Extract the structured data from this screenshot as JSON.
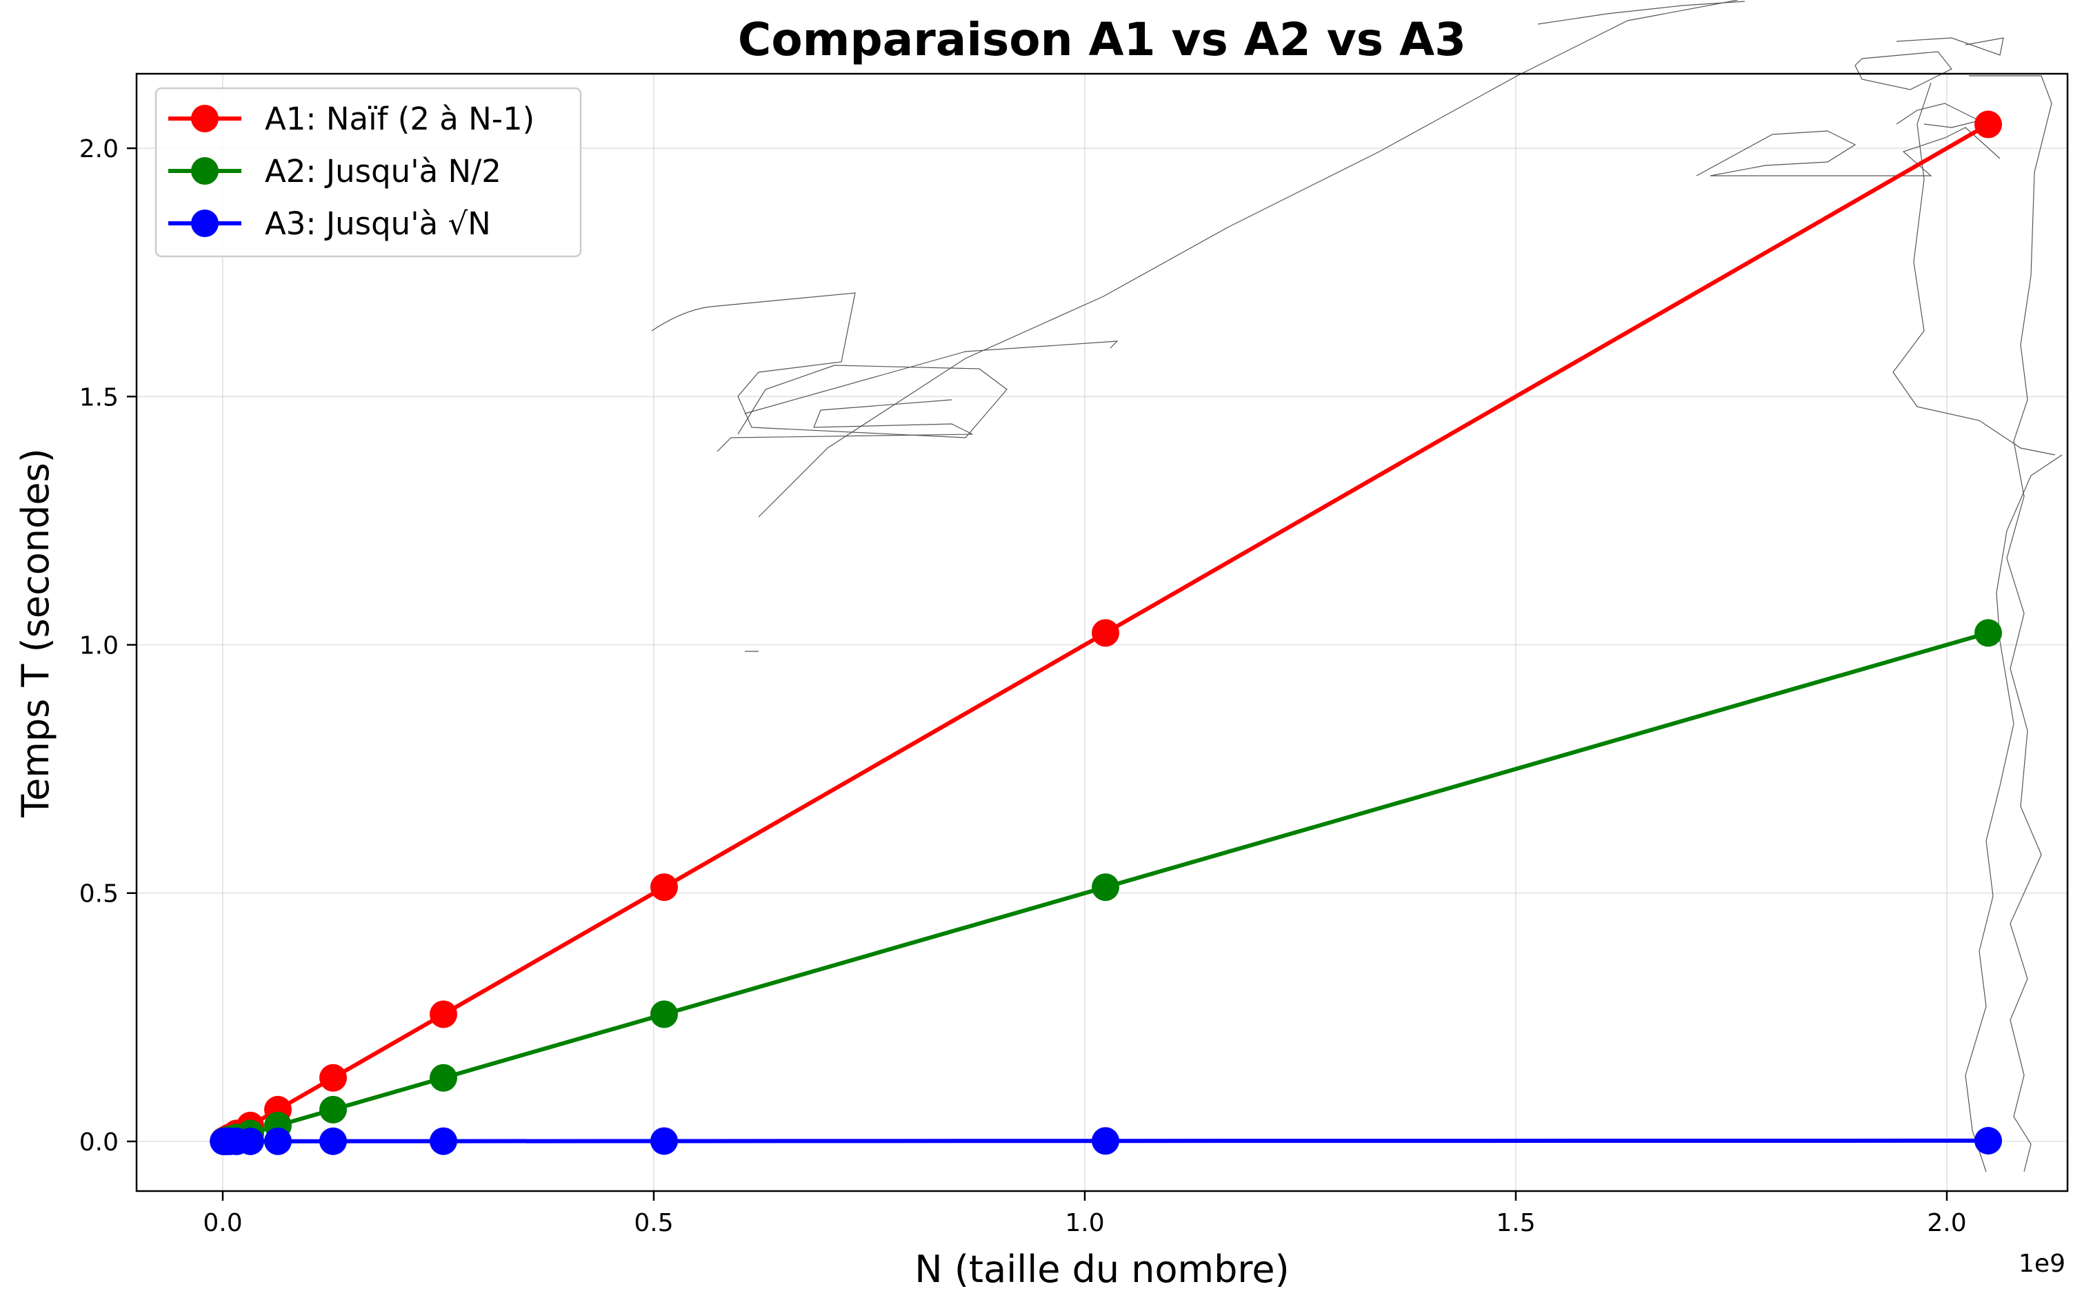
{
  "chart_data": {
    "type": "line",
    "title": "Comparaison A1 vs A2 vs A3",
    "xlabel": "N (taille du nombre)",
    "ylabel": "Temps T (secondes)",
    "x_offset_label": "1e9",
    "xlim": [
      -0.1,
      2.14
    ],
    "ylim": [
      -0.1,
      2.15
    ],
    "x_ticks": [
      0.0,
      0.5,
      1.0,
      1.5,
      2.0
    ],
    "x_tick_labels": [
      "0.0",
      "0.5",
      "1.0",
      "1.5",
      "2.0"
    ],
    "y_ticks": [
      0.0,
      0.5,
      1.0,
      1.5,
      2.0
    ],
    "y_tick_labels": [
      "0.0",
      "0.5",
      "1.0",
      "1.5",
      "2.0"
    ],
    "grid": true,
    "legend_position": "top-left",
    "x": [
      0.001,
      0.002,
      0.004,
      0.008,
      0.016,
      0.032,
      0.064,
      0.128,
      0.256,
      0.512,
      1.024,
      2.048
    ],
    "series": [
      {
        "name": "A1: Naïf (2 à N-1)",
        "color": "#ff0000",
        "values": [
          0.001,
          0.002,
          0.004,
          0.008,
          0.016,
          0.032,
          0.064,
          0.128,
          0.256,
          0.512,
          1.024,
          2.048
        ]
      },
      {
        "name": "A2: Jusqu'à N/2",
        "color": "#008000",
        "values": [
          0.0005,
          0.001,
          0.002,
          0.004,
          0.008,
          0.016,
          0.032,
          0.064,
          0.128,
          0.256,
          0.512,
          1.024
        ]
      },
      {
        "name": "A3: Jusqu'à √N",
        "color": "#0000ff",
        "values": [
          3e-05,
          4e-05,
          6e-05,
          9e-05,
          0.00013,
          0.00018,
          0.00025,
          0.00036,
          0.0005,
          0.0007,
          0.001,
          0.0014
        ]
      }
    ]
  }
}
